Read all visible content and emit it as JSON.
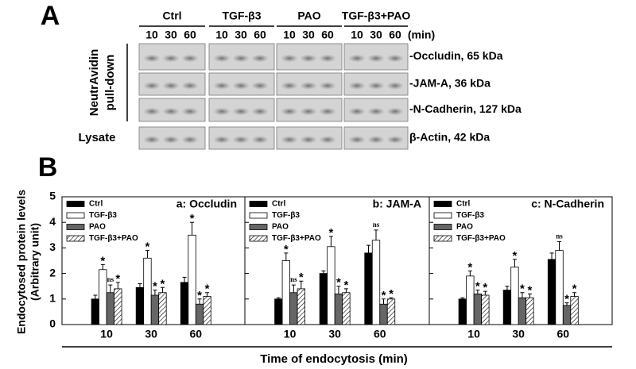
{
  "panel_a": {
    "label": "A",
    "groups": [
      "Ctrl",
      "TGF-β3",
      "PAO",
      "TGF-β3+PAO"
    ],
    "times": [
      "10",
      "30",
      "60"
    ],
    "time_unit": "(min)",
    "pulldown_label": [
      "NeutrAvidin",
      "pull-down"
    ],
    "lysate_label": "Lysate",
    "bands": [
      "-Occludin, 65 kDa",
      "-JAM-A, 36 kDa",
      "-N-Cadherin, 127 kDa",
      "β-Actin, 42 kDa"
    ]
  },
  "panel_b": {
    "label": "B",
    "y_label": [
      "Endocytosed protein levels",
      "(Arbitrary unit)"
    ],
    "x_label": "Time of endocytosis (min)"
  },
  "chart_data": [
    {
      "type": "bar",
      "title": "a: Occludin",
      "categories": [
        "10",
        "30",
        "60"
      ],
      "ylim": [
        0,
        5
      ],
      "yticks": [
        0,
        1,
        2,
        3,
        4,
        5
      ],
      "legend": "top-left",
      "series": [
        {
          "name": "Ctrl",
          "color": "#000000",
          "values": [
            1.0,
            1.45,
            1.65
          ],
          "errors": [
            0.15,
            0.15,
            0.2
          ]
        },
        {
          "name": "TGF-β3",
          "color": "#ffffff",
          "values": [
            2.15,
            2.6,
            3.5
          ],
          "errors": [
            0.2,
            0.3,
            0.5
          ],
          "annotations": [
            "*",
            "*",
            "*"
          ]
        },
        {
          "name": "PAO",
          "color": "#666666",
          "values": [
            1.25,
            1.15,
            0.8
          ],
          "errors": [
            0.3,
            0.2,
            0.2
          ],
          "annotations": [
            "ns",
            "*",
            "*"
          ]
        },
        {
          "name": "TGF-β3+PAO",
          "color": "#ffffff",
          "hatch": true,
          "values": [
            1.4,
            1.25,
            1.1
          ],
          "errors": [
            0.25,
            0.2,
            0.15
          ],
          "annotations": [
            "*",
            "*",
            "*"
          ]
        }
      ]
    },
    {
      "type": "bar",
      "title": "b: JAM-A",
      "categories": [
        "10",
        "30",
        "60"
      ],
      "ylim": [
        0,
        5
      ],
      "yticks": [
        0,
        1,
        2,
        3,
        4,
        5
      ],
      "legend": "top-left",
      "series": [
        {
          "name": "Ctrl",
          "color": "#000000",
          "values": [
            1.0,
            2.0,
            2.8
          ],
          "errors": [
            0.05,
            0.1,
            0.3
          ]
        },
        {
          "name": "TGF-β3",
          "color": "#ffffff",
          "values": [
            2.5,
            3.05,
            3.3
          ],
          "errors": [
            0.3,
            0.4,
            0.4
          ],
          "annotations": [
            "*",
            "*",
            "ns"
          ]
        },
        {
          "name": "PAO",
          "color": "#666666",
          "values": [
            1.25,
            1.2,
            0.8
          ],
          "errors": [
            0.3,
            0.3,
            0.2
          ],
          "annotations": [
            "ns",
            "*",
            "*"
          ]
        },
        {
          "name": "TGF-β3+PAO",
          "color": "#ffffff",
          "hatch": true,
          "values": [
            1.4,
            1.25,
            1.0
          ],
          "errors": [
            0.3,
            0.15,
            0.05
          ],
          "annotations": [
            "*",
            "*",
            "*"
          ]
        }
      ]
    },
    {
      "type": "bar",
      "title": "c: N-Cadherin",
      "categories": [
        "10",
        "30",
        "60"
      ],
      "ylim": [
        0,
        5
      ],
      "yticks": [
        0,
        1,
        2,
        3,
        4,
        5
      ],
      "legend": "top-left",
      "series": [
        {
          "name": "Ctrl",
          "color": "#000000",
          "values": [
            1.0,
            1.35,
            2.55
          ],
          "errors": [
            0.05,
            0.15,
            0.25
          ]
        },
        {
          "name": "TGF-β3",
          "color": "#ffffff",
          "values": [
            1.9,
            2.25,
            2.9
          ],
          "errors": [
            0.2,
            0.3,
            0.35
          ],
          "annotations": [
            "*",
            "*",
            "ns"
          ]
        },
        {
          "name": "PAO",
          "color": "#666666",
          "values": [
            1.2,
            1.05,
            0.75
          ],
          "errors": [
            0.15,
            0.2,
            0.1
          ],
          "annotations": [
            "*",
            "*",
            "*"
          ]
        },
        {
          "name": "TGF-β3+PAO",
          "color": "#ffffff",
          "hatch": true,
          "values": [
            1.15,
            1.05,
            1.1
          ],
          "errors": [
            0.15,
            0.15,
            0.15
          ],
          "annotations": [
            "*",
            "*",
            "*"
          ]
        }
      ]
    }
  ]
}
